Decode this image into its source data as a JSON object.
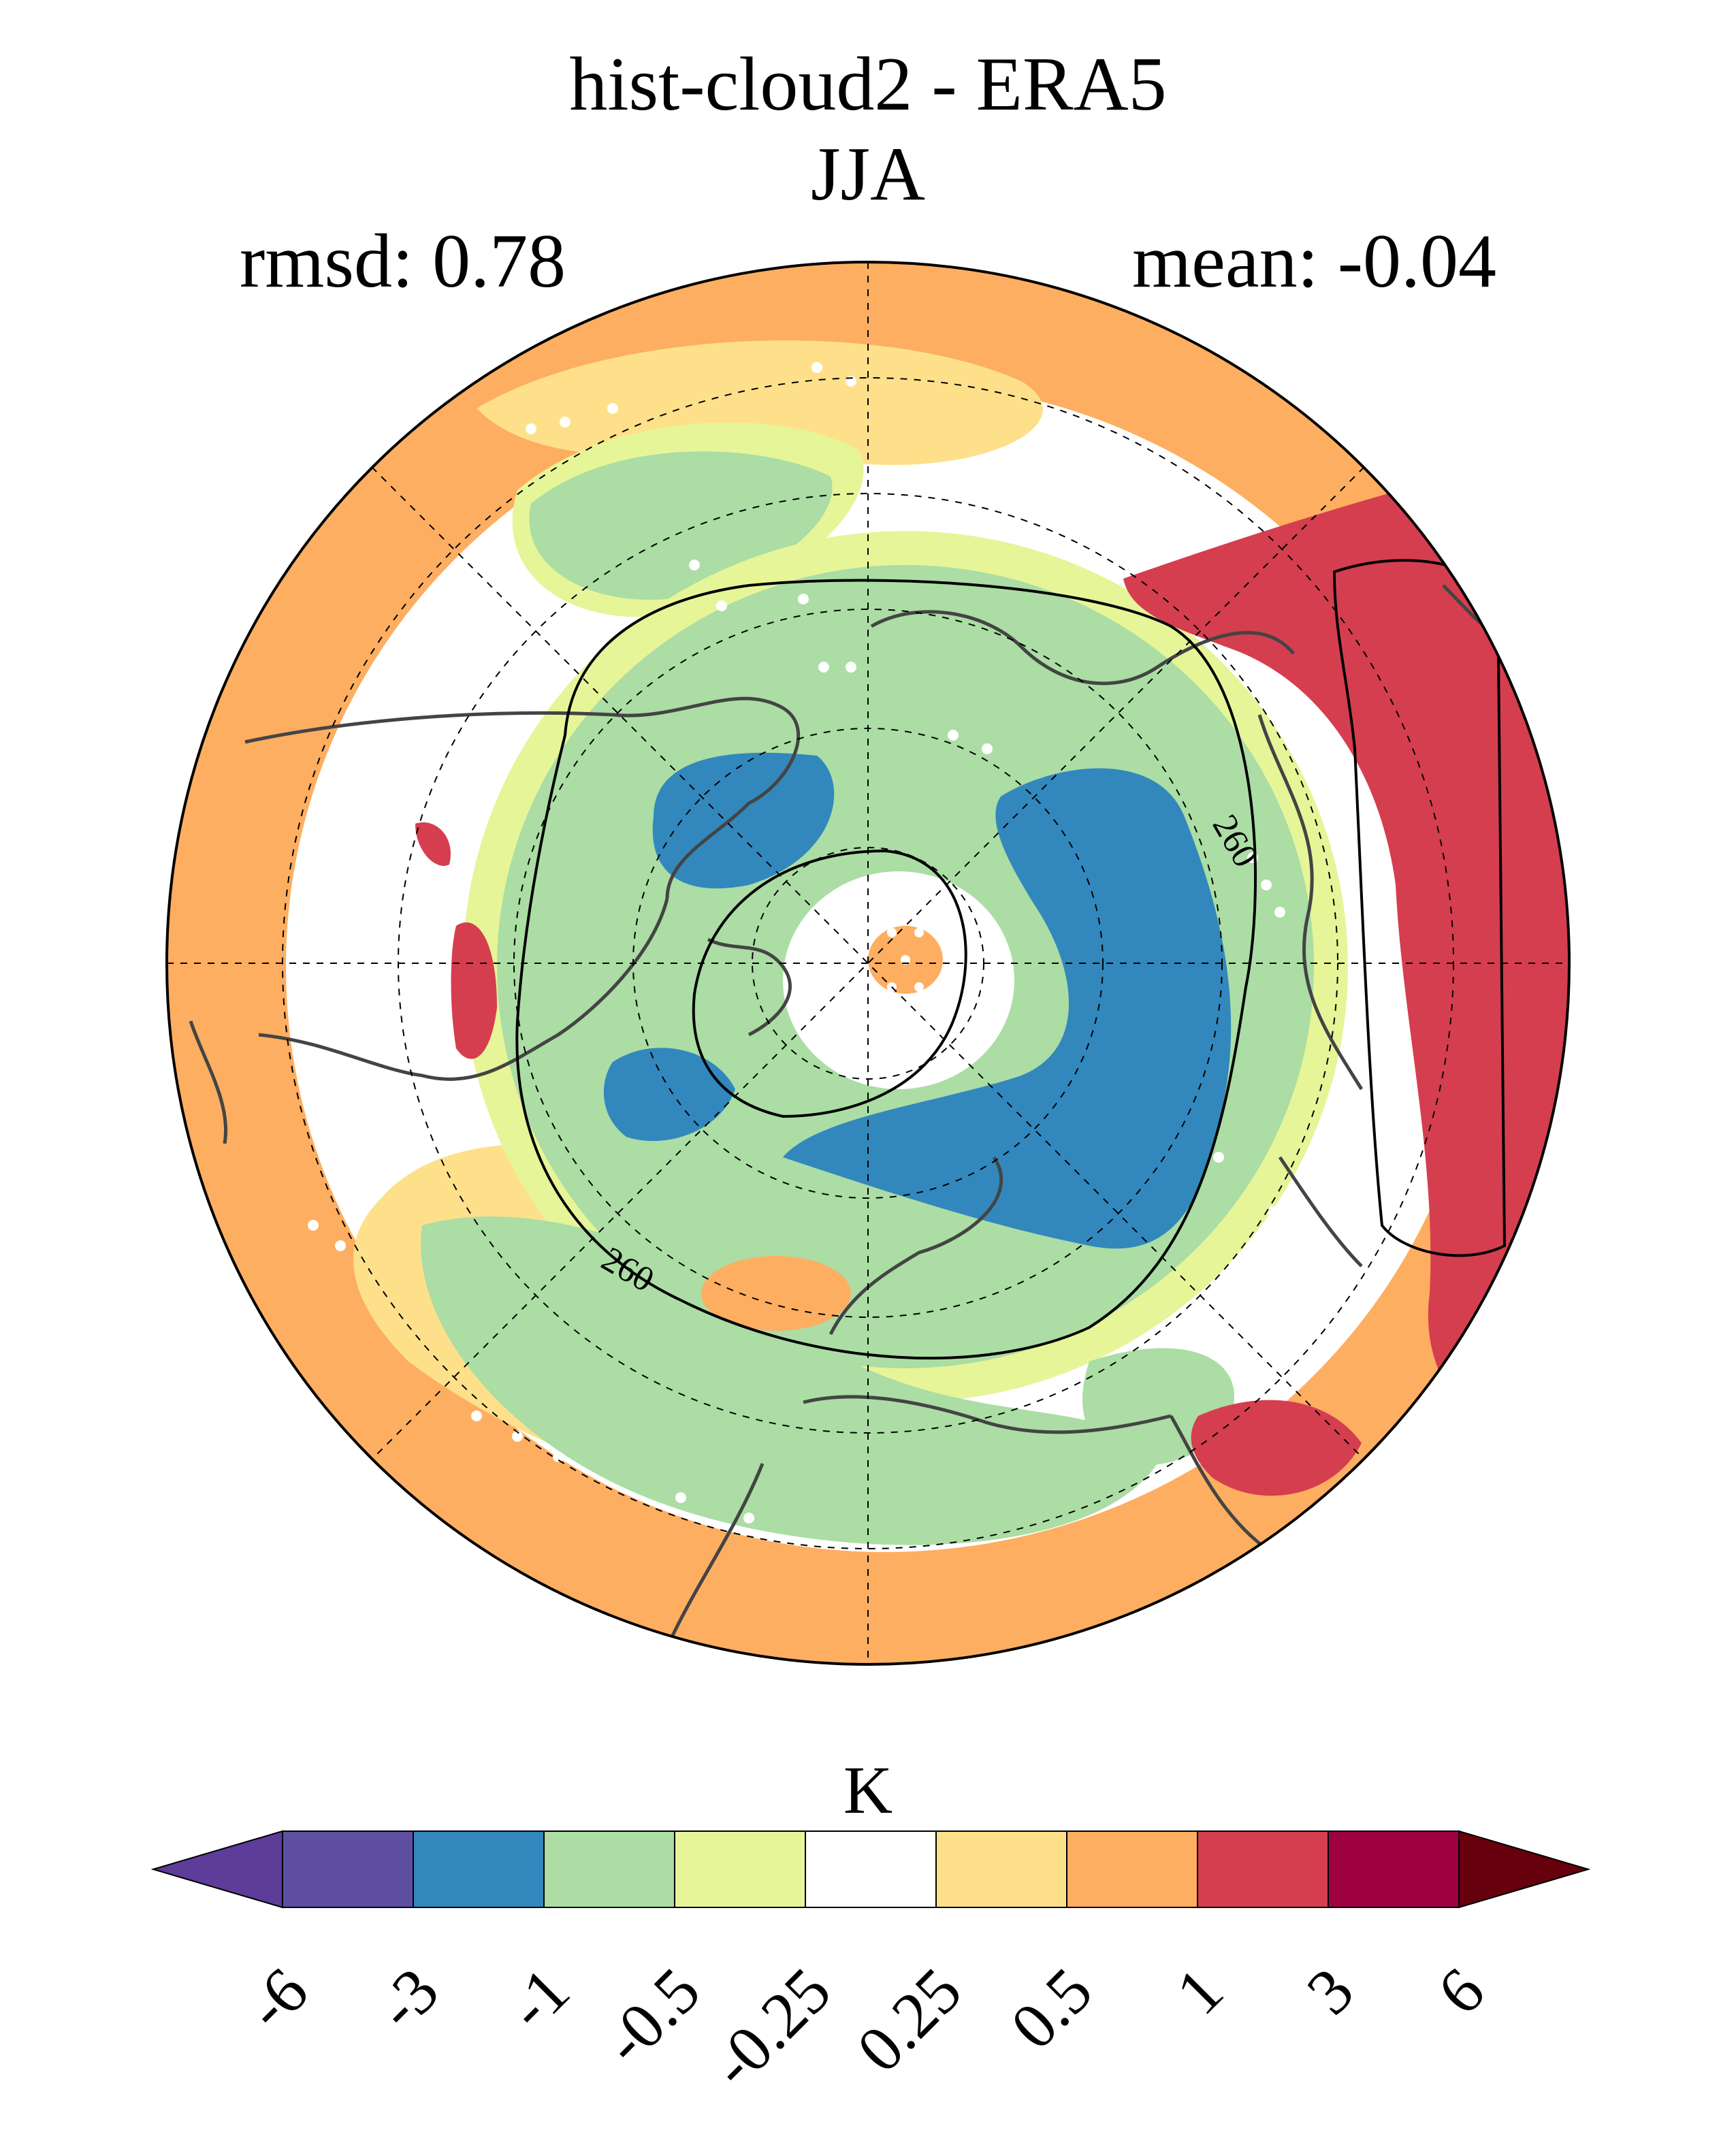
{
  "title": "hist-cloud2 - ERA5",
  "season": "JJA",
  "stats": {
    "rmsd": "rmsd: 0.78",
    "mean": "mean: -0.04"
  },
  "map": {
    "projection": "north-polar-stereographic",
    "field": "temperature difference (hist-cloud2 minus ERA5)",
    "contour_label": "260",
    "stippling": "white dots"
  },
  "colorbar": {
    "unit": "K",
    "levels": [
      "-6",
      "-3",
      "-1",
      "-0.5",
      "-0.25",
      "0.25",
      "0.5",
      "1",
      "3",
      "6"
    ],
    "colors": [
      "#5e3c99",
      "#5e4fa2",
      "#3288bd",
      "#abdda4",
      "#e6f598",
      "#ffffff",
      "#fee08b",
      "#fdae61",
      "#d53e4f",
      "#9e0142",
      "#67000d"
    ]
  }
}
